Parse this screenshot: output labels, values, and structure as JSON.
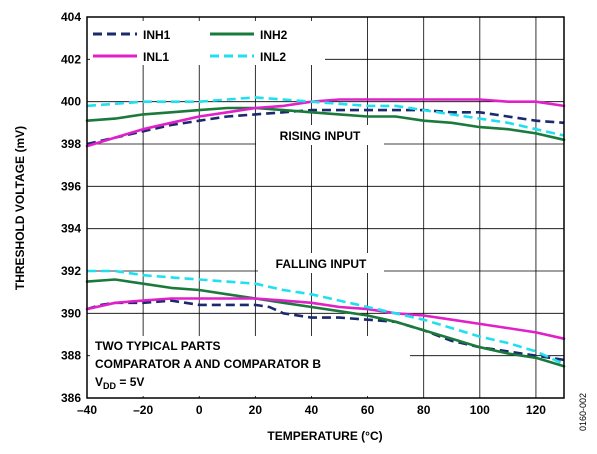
{
  "figure_id": "0160-002",
  "chart_data": {
    "type": "line",
    "xlabel": "TEMPERATURE (°C)",
    "ylabel": "THRESHOLD VOLTAGE (mV)",
    "xlim": [
      -40,
      130
    ],
    "ylim": [
      386,
      404
    ],
    "x_ticks": [
      "–40",
      "–20",
      "0",
      "20",
      "40",
      "60",
      "80",
      "100",
      "120"
    ],
    "y_ticks": [
      "386",
      "388",
      "390",
      "392",
      "394",
      "396",
      "398",
      "400",
      "402",
      "404"
    ],
    "grid": true,
    "legend": "top-left",
    "annotations": {
      "rising": "RISING INPUT",
      "falling": "FALLING INPUT",
      "note_line1": "TWO TYPICAL PARTS",
      "note_line2": "COMPARATOR A AND COMPARATOR B",
      "note_v": "V",
      "note_sub": "DD",
      "note_rest": " = 5V"
    },
    "series": [
      {
        "name": "INH1",
        "color": "#1a2a6c",
        "dash": "9,5",
        "groups": [
          [
            [
              -40,
              398.0
            ],
            [
              -30,
              398.3
            ],
            [
              -20,
              398.6
            ],
            [
              -10,
              398.9
            ],
            [
              0,
              399.1
            ],
            [
              10,
              399.3
            ],
            [
              20,
              399.4
            ],
            [
              30,
              399.5
            ],
            [
              40,
              399.6
            ],
            [
              50,
              399.6
            ],
            [
              60,
              399.6
            ],
            [
              70,
              399.6
            ],
            [
              80,
              399.6
            ],
            [
              90,
              399.5
            ],
            [
              100,
              399.5
            ],
            [
              110,
              399.3
            ],
            [
              120,
              399.1
            ],
            [
              130,
              399.0
            ]
          ],
          [
            [
              -40,
              390.2
            ],
            [
              -35,
              390.4
            ],
            [
              -30,
              390.5
            ],
            [
              -20,
              390.5
            ],
            [
              -10,
              390.6
            ],
            [
              0,
              390.4
            ],
            [
              10,
              390.4
            ],
            [
              20,
              390.4
            ],
            [
              25,
              390.3
            ],
            [
              30,
              390.0
            ],
            [
              40,
              389.8
            ],
            [
              50,
              389.8
            ],
            [
              60,
              389.7
            ],
            [
              70,
              389.6
            ],
            [
              80,
              389.2
            ],
            [
              90,
              388.7
            ],
            [
              100,
              388.4
            ],
            [
              110,
              388.2
            ],
            [
              120,
              388.0
            ],
            [
              130,
              387.8
            ]
          ]
        ]
      },
      {
        "name": "INH2",
        "color": "#1a7a3c",
        "dash": "",
        "groups": [
          [
            [
              -40,
              399.1
            ],
            [
              -30,
              399.2
            ],
            [
              -20,
              399.4
            ],
            [
              -10,
              399.5
            ],
            [
              0,
              399.6
            ],
            [
              10,
              399.7
            ],
            [
              20,
              399.7
            ],
            [
              30,
              399.6
            ],
            [
              40,
              399.5
            ],
            [
              50,
              399.4
            ],
            [
              60,
              399.3
            ],
            [
              70,
              399.3
            ],
            [
              80,
              399.1
            ],
            [
              90,
              399.0
            ],
            [
              100,
              398.8
            ],
            [
              110,
              398.7
            ],
            [
              120,
              398.5
            ],
            [
              130,
              398.2
            ]
          ],
          [
            [
              -40,
              391.5
            ],
            [
              -30,
              391.6
            ],
            [
              -20,
              391.4
            ],
            [
              -10,
              391.2
            ],
            [
              0,
              391.1
            ],
            [
              10,
              390.9
            ],
            [
              20,
              390.7
            ],
            [
              30,
              390.5
            ],
            [
              40,
              390.3
            ],
            [
              50,
              390.1
            ],
            [
              60,
              389.9
            ],
            [
              70,
              389.6
            ],
            [
              80,
              389.2
            ],
            [
              90,
              388.8
            ],
            [
              100,
              388.4
            ],
            [
              110,
              388.1
            ],
            [
              120,
              387.9
            ],
            [
              130,
              387.5
            ]
          ]
        ]
      },
      {
        "name": "INL1",
        "color": "#e020c8",
        "dash": "",
        "groups": [
          [
            [
              -40,
              397.9
            ],
            [
              -30,
              398.3
            ],
            [
              -20,
              398.7
            ],
            [
              -10,
              399.0
            ],
            [
              0,
              399.3
            ],
            [
              10,
              399.5
            ],
            [
              20,
              399.7
            ],
            [
              30,
              399.8
            ],
            [
              40,
              400.0
            ],
            [
              50,
              400.1
            ],
            [
              60,
              400.1
            ],
            [
              70,
              400.1
            ],
            [
              80,
              400.1
            ],
            [
              90,
              400.1
            ],
            [
              100,
              400.1
            ],
            [
              110,
              400.0
            ],
            [
              120,
              400.0
            ],
            [
              130,
              399.8
            ]
          ],
          [
            [
              -40,
              390.2
            ],
            [
              -30,
              390.5
            ],
            [
              -20,
              390.6
            ],
            [
              -10,
              390.7
            ],
            [
              0,
              390.7
            ],
            [
              10,
              390.7
            ],
            [
              20,
              390.7
            ],
            [
              30,
              390.6
            ],
            [
              40,
              390.5
            ],
            [
              50,
              390.3
            ],
            [
              60,
              390.2
            ],
            [
              70,
              390.0
            ],
            [
              80,
              389.9
            ],
            [
              90,
              389.7
            ],
            [
              100,
              389.5
            ],
            [
              110,
              389.3
            ],
            [
              120,
              389.1
            ],
            [
              130,
              388.8
            ]
          ]
        ]
      },
      {
        "name": "INL2",
        "color": "#20e0f0",
        "dash": "9,5",
        "groups": [
          [
            [
              -40,
              399.8
            ],
            [
              -30,
              399.9
            ],
            [
              -20,
              400.0
            ],
            [
              -10,
              400.0
            ],
            [
              0,
              400.0
            ],
            [
              10,
              400.1
            ],
            [
              20,
              400.2
            ],
            [
              30,
              400.1
            ],
            [
              40,
              400.0
            ],
            [
              50,
              399.9
            ],
            [
              60,
              399.8
            ],
            [
              70,
              399.8
            ],
            [
              80,
              399.6
            ],
            [
              90,
              399.4
            ],
            [
              100,
              399.2
            ],
            [
              110,
              399.0
            ],
            [
              120,
              398.7
            ],
            [
              130,
              398.4
            ]
          ],
          [
            [
              -40,
              392.0
            ],
            [
              -30,
              392.0
            ],
            [
              -20,
              391.8
            ],
            [
              -10,
              391.7
            ],
            [
              0,
              391.6
            ],
            [
              10,
              391.5
            ],
            [
              20,
              391.4
            ],
            [
              30,
              391.1
            ],
            [
              40,
              390.9
            ],
            [
              50,
              390.6
            ],
            [
              60,
              390.3
            ],
            [
              70,
              390.0
            ],
            [
              80,
              389.7
            ],
            [
              90,
              389.3
            ],
            [
              100,
              388.9
            ],
            [
              110,
              388.6
            ],
            [
              120,
              388.2
            ],
            [
              130,
              387.6
            ]
          ]
        ]
      }
    ]
  }
}
